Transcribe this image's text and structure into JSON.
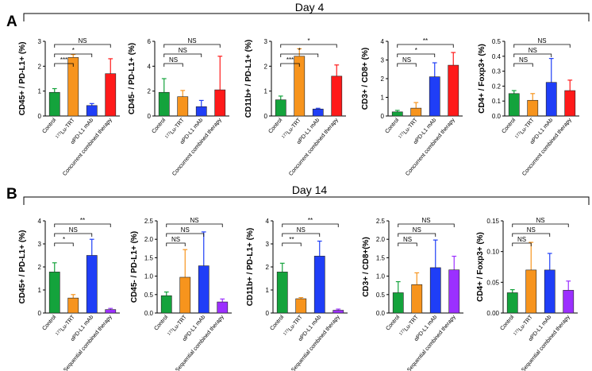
{
  "figure": {
    "panels": [
      {
        "letter": "A",
        "title": "Day 4"
      },
      {
        "letter": "B",
        "title": "Day 14"
      }
    ]
  },
  "colors": {
    "control": "#14a33c",
    "lu_trt": "#f7941d",
    "pd_l1_mab": "#1f3ef7",
    "combined_A": "#ff1a1a",
    "combined_B": "#9b30ff"
  },
  "chart_data": [
    {
      "type": "bar",
      "panel": "A",
      "ylabel": "CD45+ / PD-L1+ (%)",
      "categories": [
        "Control",
        "177Lu-TRT",
        "αPD-L1 mAb",
        "Concurrent combined therapy"
      ],
      "values": [
        0.95,
        2.35,
        0.42,
        1.7
      ],
      "errors": [
        0.15,
        0.12,
        0.08,
        0.6
      ],
      "ylim": [
        0,
        3
      ],
      "yticks": [
        "0",
        "1",
        "2",
        "3"
      ],
      "brackets": [
        {
          "from": 0,
          "to": 1,
          "label": "***"
        },
        {
          "from": 0,
          "to": 2,
          "label": "*"
        },
        {
          "from": 0,
          "to": 3,
          "label": "NS"
        }
      ]
    },
    {
      "type": "bar",
      "panel": "A",
      "ylabel": "CD45- / PD-L1+ (%)",
      "categories": [
        "Control",
        "177Lu-TRT",
        "αPD-L1 mAb",
        "Concurrent combined therapy"
      ],
      "values": [
        1.9,
        1.55,
        0.75,
        2.1
      ],
      "errors": [
        1.1,
        0.5,
        0.5,
        2.7
      ],
      "ylim": [
        0,
        6
      ],
      "yticks": [
        "0",
        "2",
        "4",
        "6"
      ],
      "brackets": [
        {
          "from": 0,
          "to": 1,
          "label": "NS"
        },
        {
          "from": 0,
          "to": 2,
          "label": "NS"
        },
        {
          "from": 0,
          "to": 3,
          "label": "NS"
        }
      ]
    },
    {
      "type": "bar",
      "panel": "A",
      "ylabel": "CD11b+ / PD-L1+ (%)",
      "categories": [
        "Control",
        "177Lu-TRT",
        "αPD-L1 mAb",
        "Concurrent combined therapy"
      ],
      "values": [
        0.65,
        2.4,
        0.28,
        1.6
      ],
      "errors": [
        0.15,
        0.3,
        0.03,
        0.45
      ],
      "ylim": [
        0,
        3
      ],
      "yticks": [
        "0",
        "1",
        "2",
        "3"
      ],
      "brackets": [
        {
          "from": 0,
          "to": 1,
          "label": "***"
        },
        {
          "from": 0,
          "to": 2,
          "label": "*"
        },
        {
          "from": 0,
          "to": 3,
          "label": "*"
        }
      ]
    },
    {
      "type": "bar",
      "panel": "A",
      "ylabel": "CD3+ / CD8+ (%)",
      "categories": [
        "Control",
        "177Lu-TRT",
        "αPD-L1 mAb",
        "Concurrent combined therapy"
      ],
      "values": [
        0.22,
        0.42,
        2.1,
        2.72
      ],
      "errors": [
        0.08,
        0.3,
        0.75,
        0.68
      ],
      "ylim": [
        0,
        4
      ],
      "yticks": [
        "0",
        "1",
        "2",
        "3",
        "4"
      ],
      "brackets": [
        {
          "from": 0,
          "to": 1,
          "label": "NS"
        },
        {
          "from": 0,
          "to": 2,
          "label": "*"
        },
        {
          "from": 0,
          "to": 3,
          "label": "**"
        }
      ]
    },
    {
      "type": "bar",
      "panel": "A",
      "ylabel": "CD4+ / Foxp3+ (%)",
      "categories": [
        "Control",
        "177Lu-TRT",
        "αPD-L1 mAb",
        "Concurrent combined therapy"
      ],
      "values": [
        0.15,
        0.105,
        0.225,
        0.17
      ],
      "errors": [
        0.02,
        0.045,
        0.16,
        0.07
      ],
      "ylim": [
        0,
        0.5
      ],
      "yticks": [
        "0.0",
        "0.1",
        "0.2",
        "0.3",
        "0.4",
        "0.5"
      ],
      "brackets": [
        {
          "from": 0,
          "to": 1,
          "label": "NS"
        },
        {
          "from": 0,
          "to": 2,
          "label": "NS"
        },
        {
          "from": 0,
          "to": 3,
          "label": "NS"
        }
      ]
    },
    {
      "type": "bar",
      "panel": "B",
      "ylabel": "CD45+ / PD-L1+ (%)",
      "categories": [
        "Control",
        "177Lu-TRT",
        "αPD-L1 mAb",
        "Sequential combined therapy"
      ],
      "values": [
        1.78,
        0.65,
        2.5,
        0.15
      ],
      "errors": [
        0.4,
        0.15,
        0.7,
        0.05
      ],
      "ylim": [
        0,
        4
      ],
      "yticks": [
        "0",
        "1",
        "2",
        "3",
        "4"
      ],
      "brackets": [
        {
          "from": 0,
          "to": 1,
          "label": "*"
        },
        {
          "from": 0,
          "to": 2,
          "label": "NS"
        },
        {
          "from": 0,
          "to": 3,
          "label": "**"
        }
      ]
    },
    {
      "type": "bar",
      "panel": "B",
      "ylabel": "CD45- / PD-L1+ (%)",
      "categories": [
        "Control",
        "177Lu-TRT",
        "αPD-L1 mAb",
        "Sequential combined therapy"
      ],
      "values": [
        0.47,
        0.97,
        1.28,
        0.3
      ],
      "errors": [
        0.1,
        0.75,
        0.92,
        0.08
      ],
      "ylim": [
        0,
        2.5
      ],
      "yticks": [
        "0.0",
        "0.5",
        "1.0",
        "1.5",
        "2.0",
        "2.5"
      ],
      "brackets": [
        {
          "from": 0,
          "to": 1,
          "label": "NS"
        },
        {
          "from": 0,
          "to": 2,
          "label": "NS"
        },
        {
          "from": 0,
          "to": 3,
          "label": "NS"
        }
      ]
    },
    {
      "type": "bar",
      "panel": "B",
      "ylabel": "CD11b+ / PD-L1+ (%)",
      "categories": [
        "Control",
        "177Lu-TRT",
        "αPD-L1 mAb",
        "Sequential combined therapy"
      ],
      "values": [
        1.78,
        0.62,
        2.47,
        0.12
      ],
      "errors": [
        0.38,
        0.05,
        0.65,
        0.05
      ],
      "ylim": [
        0,
        4
      ],
      "yticks": [
        "0",
        "1",
        "2",
        "3",
        "4"
      ],
      "brackets": [
        {
          "from": 0,
          "to": 1,
          "label": "**"
        },
        {
          "from": 0,
          "to": 2,
          "label": "NS"
        },
        {
          "from": 0,
          "to": 3,
          "label": "**"
        }
      ]
    },
    {
      "type": "bar",
      "panel": "B",
      "ylabel": "CD3+ / CD8+(%)",
      "categories": [
        "Control",
        "177Lu-TRT",
        "αPD-L1 mAb",
        "Sequential combined therapy"
      ],
      "values": [
        0.55,
        0.77,
        1.23,
        1.17
      ],
      "errors": [
        0.3,
        0.32,
        0.75,
        0.37
      ],
      "ylim": [
        0,
        2.5
      ],
      "yticks": [
        "0.0",
        "0.5",
        "1.0",
        "1.5",
        "2.0",
        "2.5"
      ],
      "brackets": [
        {
          "from": 0,
          "to": 1,
          "label": "NS"
        },
        {
          "from": 0,
          "to": 2,
          "label": "NS"
        },
        {
          "from": 0,
          "to": 3,
          "label": "NS"
        }
      ]
    },
    {
      "type": "bar",
      "panel": "B",
      "ylabel": "CD4+ / Foxp3+ (%)",
      "categories": [
        "Control",
        "177Lu-TRT",
        "αPD-L1 mAb",
        "Sequential combined therapy"
      ],
      "values": [
        0.033,
        0.07,
        0.07,
        0.037
      ],
      "errors": [
        0.005,
        0.045,
        0.027,
        0.015
      ],
      "ylim": [
        0,
        0.15
      ],
      "yticks": [
        "0.00",
        "0.05",
        "0.10",
        "0.15"
      ],
      "brackets": [
        {
          "from": 0,
          "to": 1,
          "label": "NS"
        },
        {
          "from": 0,
          "to": 2,
          "label": "NS"
        },
        {
          "from": 0,
          "to": 3,
          "label": "NS"
        }
      ]
    }
  ]
}
